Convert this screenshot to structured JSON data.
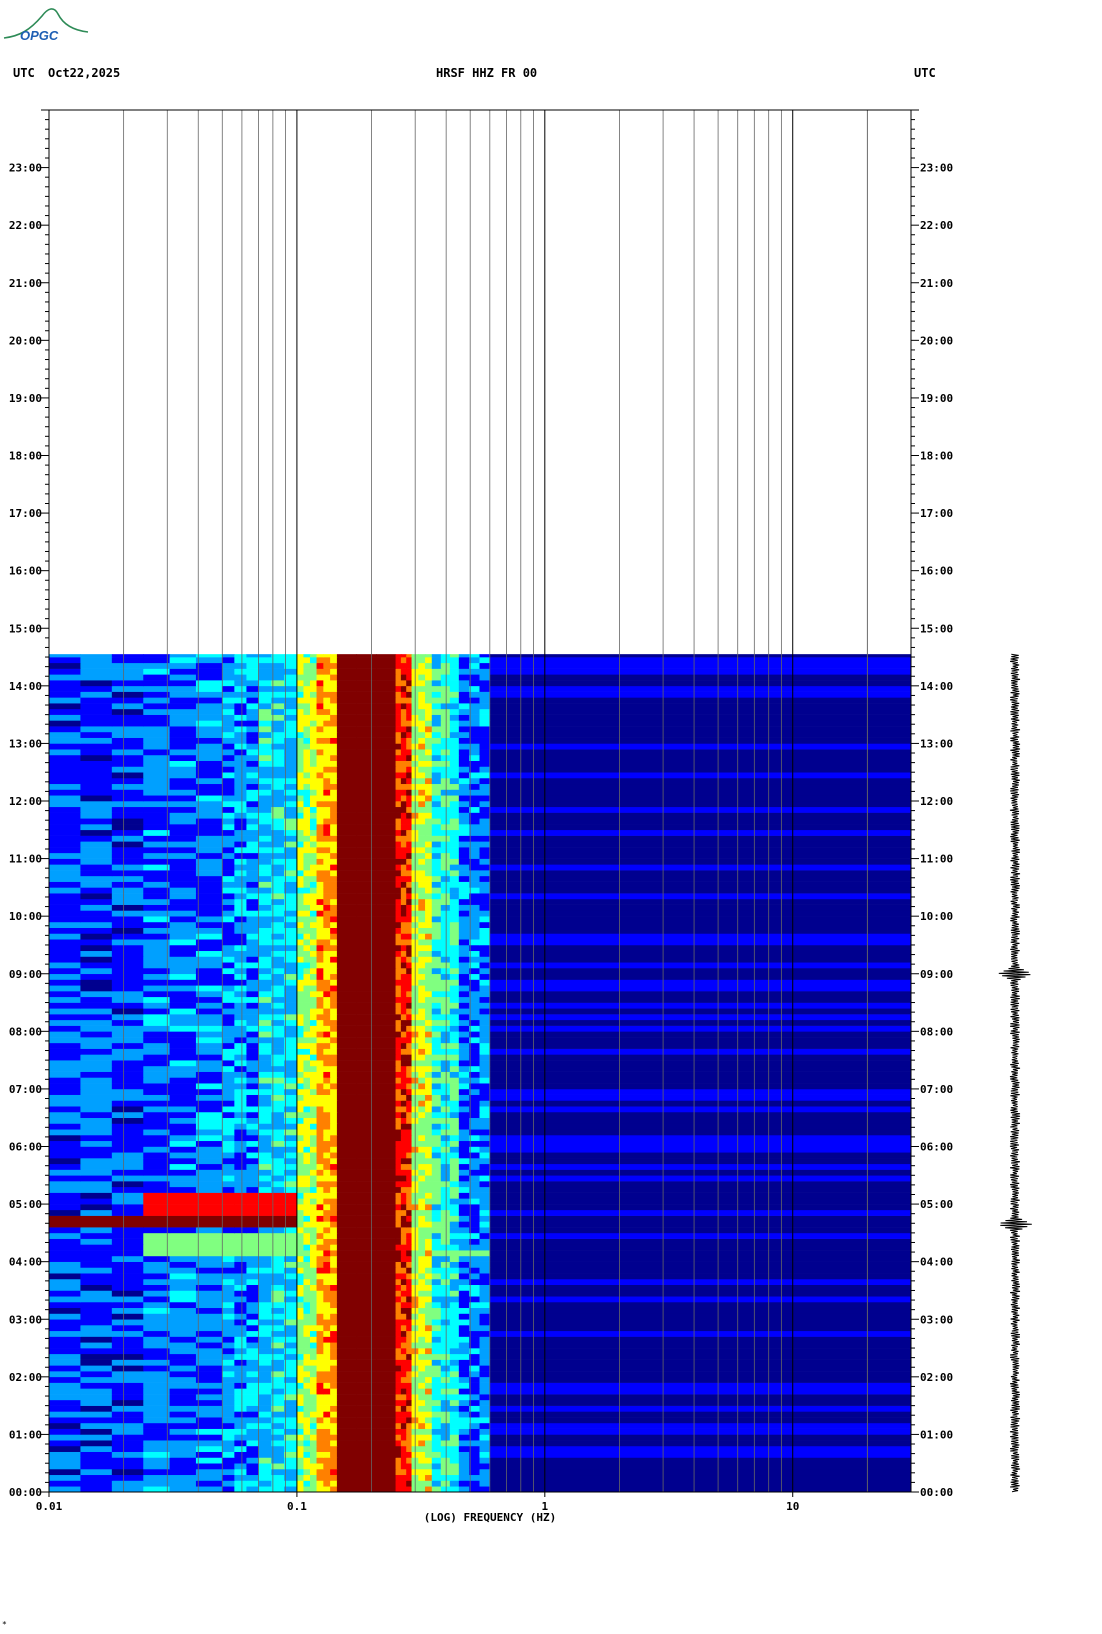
{
  "header": {
    "left_tz": "UTC",
    "date": "Oct22,2025",
    "station": "HRSF HHZ FR 00",
    "right_tz": "UTC"
  },
  "logo": {
    "text": "OPGC",
    "icon": "opgc-logo"
  },
  "footnote": "*",
  "chart_data": {
    "type": "heatmap",
    "title": "HRSF HHZ FR 00",
    "xlabel": "(LOG) FREQUENCY (HZ)",
    "ylabel": "",
    "x_scale": "log",
    "xlim": [
      0.01,
      30
    ],
    "ylim_hours": [
      0,
      24
    ],
    "x_tick_labels": [
      {
        "value": 0.01,
        "label": "0.01"
      },
      {
        "value": 0.1,
        "label": "0.1"
      },
      {
        "value": 1,
        "label": "1"
      },
      {
        "value": 10,
        "label": "10"
      }
    ],
    "y_tick_labels": [
      "00:00",
      "01:00",
      "02:00",
      "03:00",
      "04:00",
      "05:00",
      "06:00",
      "07:00",
      "08:00",
      "09:00",
      "10:00",
      "11:00",
      "12:00",
      "13:00",
      "14:00",
      "15:00",
      "16:00",
      "17:00",
      "18:00",
      "19:00",
      "20:00",
      "21:00",
      "22:00",
      "23:00"
    ],
    "data_end_time": "14:33",
    "colormap": [
      "#00008f",
      "#0000ff",
      "#00a0ff",
      "#00ffff",
      "#80ff80",
      "#ffff00",
      "#ff8000",
      "#ff0000",
      "#800000"
    ],
    "frequency_bands": [
      {
        "f_start": 0.01,
        "f_end": 0.024,
        "level": 1.4
      },
      {
        "f_start": 0.024,
        "f_end": 0.05,
        "level": 1.6
      },
      {
        "f_start": 0.05,
        "f_end": 0.07,
        "level": 2.0
      },
      {
        "f_start": 0.07,
        "f_end": 0.1,
        "level": 2.6
      },
      {
        "f_start": 0.1,
        "f_end": 0.12,
        "level": 4.3
      },
      {
        "f_start": 0.12,
        "f_end": 0.145,
        "level": 5.6
      },
      {
        "f_start": 0.145,
        "f_end": 0.25,
        "level": 8.0
      },
      {
        "f_start": 0.25,
        "f_end": 0.29,
        "level": 6.8
      },
      {
        "f_start": 0.29,
        "f_end": 0.35,
        "level": 4.6
      },
      {
        "f_start": 0.35,
        "f_end": 0.45,
        "level": 3.2
      },
      {
        "f_start": 0.45,
        "f_end": 0.6,
        "level": 1.7
      },
      {
        "f_start": 0.6,
        "f_end": 30,
        "level": 0.3
      }
    ],
    "events": [
      {
        "t_start": 4.55,
        "t_end": 4.75,
        "f_start": 0.01,
        "f_end": 0.1,
        "level": 8.0
      },
      {
        "t_start": 4.75,
        "t_end": 5.1,
        "f_start": 0.024,
        "f_end": 0.1,
        "level": 6.5
      },
      {
        "t_start": 4.1,
        "t_end": 4.5,
        "f_start": 0.024,
        "f_end": 0.1,
        "level": 4.0
      },
      {
        "t_start": 4.1,
        "t_end": 4.15,
        "f_start": 0.1,
        "f_end": 1.5,
        "level": 3.5
      },
      {
        "t_start": 8.9,
        "t_end": 9.1,
        "f_start": 1.0,
        "f_end": 30,
        "level": 0.8
      }
    ],
    "seismogram": {
      "events_hours": [
        9.0,
        4.65
      ]
    }
  }
}
